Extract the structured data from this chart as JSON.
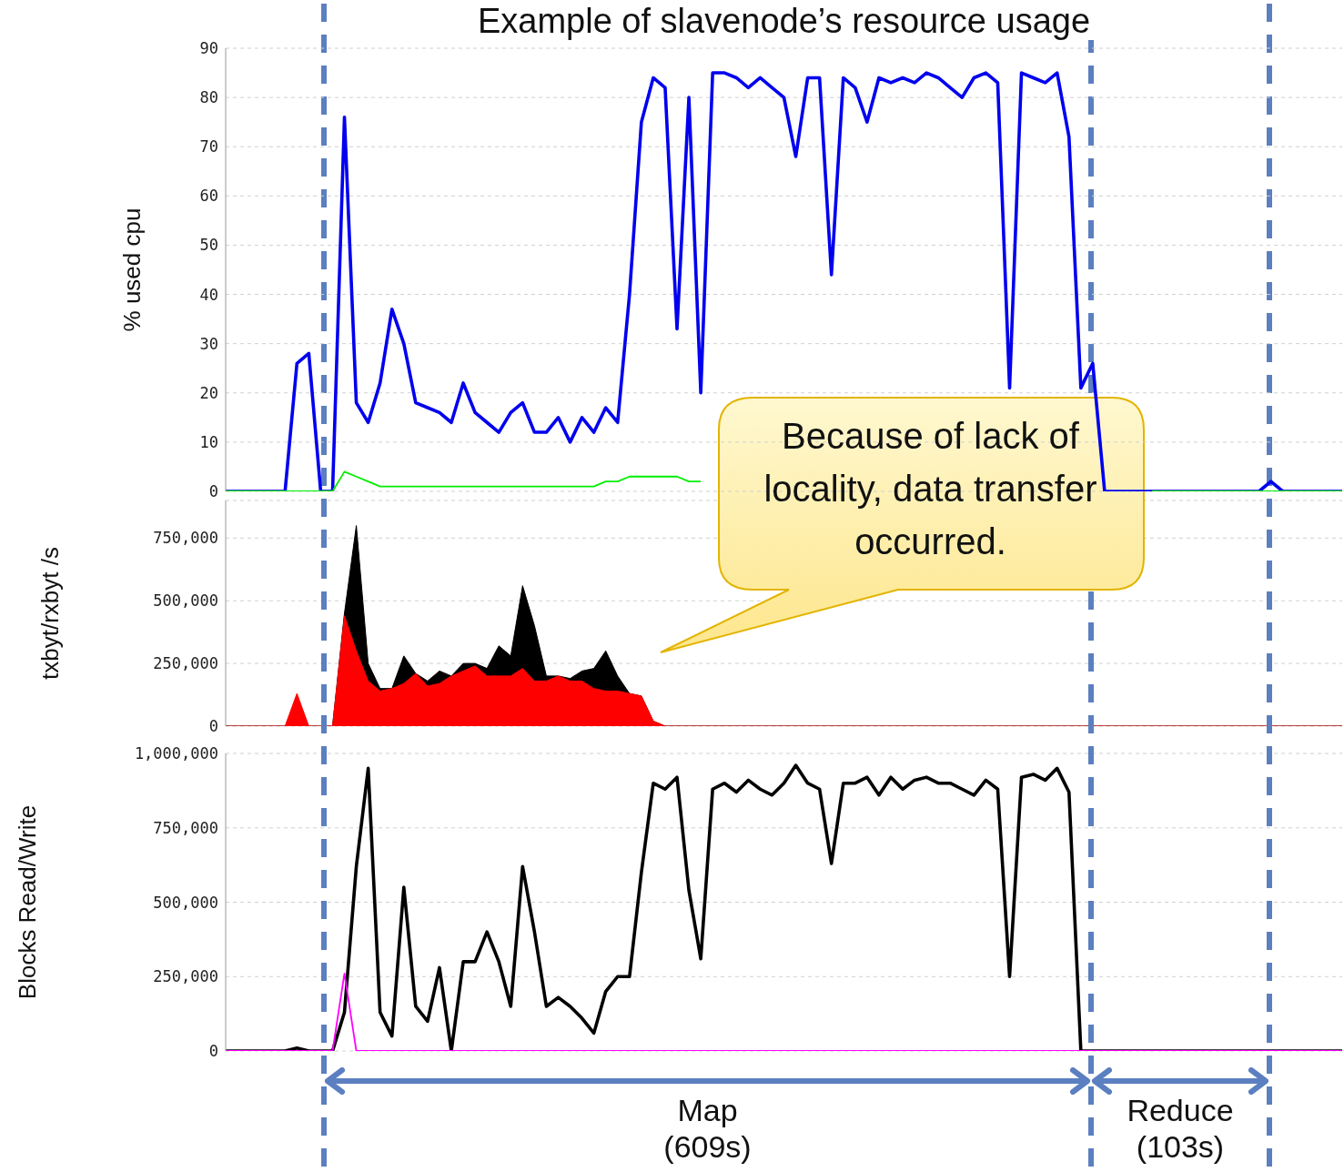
{
  "chart_data": [
    {
      "type": "line",
      "title": "Example of slavenode’s resource usage",
      "ylabel": "% used cpu",
      "categories": [
        null,
        null,
        null,
        null,
        null,
        null,
        null,
        null,
        null,
        null,
        null,
        null,
        null,
        null,
        null,
        null,
        null,
        null,
        null,
        null,
        null,
        null,
        null,
        null,
        null,
        null,
        null,
        null,
        null,
        null,
        null,
        null,
        null,
        null,
        null,
        null,
        null,
        null,
        null,
        null,
        null,
        null,
        null,
        null,
        null,
        null,
        null,
        null,
        null,
        null,
        null,
        null,
        null,
        null,
        null,
        null,
        null,
        null,
        null,
        null,
        null,
        null,
        null,
        null,
        null,
        null,
        null,
        null,
        null,
        null,
        null,
        null,
        null,
        null,
        null,
        null,
        null,
        null,
        null,
        null,
        null,
        null,
        null,
        null,
        null,
        null,
        null,
        null,
        null,
        null,
        null,
        null,
        null,
        null,
        null
      ],
      "ylim": [
        0,
        90
      ],
      "yticks": [
        0,
        10,
        20,
        30,
        40,
        50,
        60,
        70,
        80,
        90
      ],
      "tick_labels": "y",
      "grid": "y",
      "series": [
        {
          "color": "#0000ee",
          "values": [
            0,
            0,
            0,
            0,
            0,
            0,
            26,
            28,
            0,
            0,
            76,
            18,
            14,
            22,
            37,
            30,
            18,
            17,
            16,
            14,
            22,
            16,
            14,
            12,
            16,
            18,
            12,
            12,
            15,
            10,
            15,
            12,
            17,
            14,
            40,
            75,
            84,
            82,
            33,
            80,
            20,
            85,
            85,
            84,
            82,
            84,
            82,
            80,
            68,
            84,
            84,
            44,
            84,
            82,
            75,
            84,
            83,
            84,
            83,
            85,
            84,
            82,
            80,
            84,
            85,
            83,
            21,
            85,
            84,
            83,
            85,
            72,
            21,
            26,
            0,
            0,
            0,
            0,
            0,
            0,
            0,
            0,
            0,
            0,
            0,
            0,
            0,
            0,
            2,
            0,
            0,
            0,
            0,
            0,
            0
          ]
        },
        {
          "color": "#00ee00",
          "values": [
            0,
            0,
            0,
            0,
            0,
            0,
            0,
            0,
            0,
            0,
            4,
            3,
            2,
            1,
            1,
            1,
            1,
            1,
            1,
            1,
            1,
            1,
            1,
            1,
            1,
            1,
            1,
            1,
            1,
            1,
            1,
            1,
            2,
            2,
            3,
            3,
            3,
            3,
            3,
            2,
            2,
            null,
            null,
            null,
            null,
            null,
            null,
            null,
            null,
            null,
            null,
            null,
            null,
            null,
            null,
            null,
            null,
            null,
            null,
            null,
            null,
            null,
            null,
            null,
            null,
            null,
            null,
            null,
            null,
            null,
            null,
            null,
            null,
            null,
            null,
            null,
            null,
            null,
            0,
            0,
            0,
            0,
            0,
            0,
            0,
            0,
            0,
            0,
            0,
            0,
            0,
            0,
            0,
            0,
            0
          ]
        }
      ]
    },
    {
      "type": "area",
      "ylabel": "txbyt/rxbyt /s",
      "categories": [
        null,
        null,
        null,
        null,
        null,
        null,
        null,
        null,
        null,
        null,
        null,
        null,
        null,
        null,
        null,
        null,
        null,
        null,
        null,
        null,
        null,
        null,
        null,
        null,
        null,
        null,
        null,
        null,
        null,
        null,
        null,
        null,
        null,
        null,
        null,
        null,
        null,
        null,
        null,
        null,
        null,
        null,
        null,
        null,
        null,
        null,
        null,
        null,
        null,
        null,
        null,
        null,
        null,
        null,
        null,
        null,
        null,
        null,
        null,
        null,
        null,
        null,
        null,
        null,
        null,
        null,
        null,
        null,
        null,
        null,
        null,
        null,
        null,
        null,
        null,
        null,
        null,
        null,
        null,
        null,
        null,
        null,
        null,
        null,
        null,
        null,
        null,
        null,
        null,
        null,
        null,
        null,
        null,
        null,
        null
      ],
      "ylim": [
        0,
        900000
      ],
      "yticks": [
        0,
        {
          "value": 250000,
          "label": "250,000"
        },
        {
          "value": 500000,
          "label": "500,000"
        },
        {
          "value": 750000,
          "label": "750,000"
        }
      ],
      "tick_labels": "y",
      "grid": "y",
      "annotations": [
        "Because of lack of locality, data transfer occurred."
      ],
      "series": [
        {
          "color": "#000000",
          "values": [
            0,
            0,
            0,
            0,
            0,
            0,
            0,
            0,
            0,
            0,
            450000,
            800000,
            250000,
            150000,
            150000,
            280000,
            210000,
            180000,
            220000,
            200000,
            250000,
            250000,
            230000,
            320000,
            280000,
            560000,
            400000,
            200000,
            200000,
            190000,
            220000,
            230000,
            300000,
            200000,
            130000,
            120000,
            20000,
            0,
            0,
            0,
            0,
            0,
            0,
            0,
            0,
            0,
            0,
            0,
            0,
            0,
            0,
            0,
            0,
            0,
            0,
            0,
            0,
            0,
            0,
            0,
            0,
            0,
            0,
            0,
            0,
            0,
            0,
            0,
            0,
            0,
            0,
            0,
            0,
            0,
            0,
            0,
            0,
            0,
            0,
            0,
            0,
            0,
            0,
            0,
            0,
            0,
            0,
            0,
            0,
            0,
            0,
            0,
            0,
            0,
            0
          ]
        },
        {
          "color": "#ff0000",
          "values": [
            0,
            0,
            0,
            0,
            0,
            0,
            130000,
            0,
            0,
            0,
            440000,
            300000,
            180000,
            140000,
            150000,
            170000,
            210000,
            160000,
            170000,
            200000,
            220000,
            240000,
            200000,
            200000,
            200000,
            230000,
            180000,
            180000,
            200000,
            180000,
            180000,
            150000,
            140000,
            140000,
            130000,
            120000,
            20000,
            0,
            0,
            0,
            0,
            0,
            0,
            0,
            0,
            0,
            0,
            0,
            0,
            0,
            0,
            0,
            0,
            0,
            0,
            0,
            0,
            0,
            0,
            0,
            0,
            0,
            0,
            0,
            0,
            0,
            0,
            0,
            0,
            0,
            0,
            0,
            0,
            0,
            0,
            0,
            0,
            0,
            0,
            0,
            0,
            0,
            0,
            0,
            0,
            0,
            0,
            0,
            0,
            0,
            0,
            0,
            0,
            0,
            0
          ]
        }
      ]
    },
    {
      "type": "line",
      "ylabel": "Blocks Read/Write",
      "categories": [
        null,
        null,
        null,
        null,
        null,
        null,
        null,
        null,
        null,
        null,
        null,
        null,
        null,
        null,
        null,
        null,
        null,
        null,
        null,
        null,
        null,
        null,
        null,
        null,
        null,
        null,
        null,
        null,
        null,
        null,
        null,
        null,
        null,
        null,
        null,
        null,
        null,
        null,
        null,
        null,
        null,
        null,
        null,
        null,
        null,
        null,
        null,
        null,
        null,
        null,
        null,
        null,
        null,
        null,
        null,
        null,
        null,
        null,
        null,
        null,
        null,
        null,
        null,
        null,
        null,
        null,
        null,
        null,
        null,
        null,
        null,
        null,
        null,
        null,
        null,
        null,
        null,
        null,
        null,
        null,
        null,
        null,
        null,
        null,
        null,
        null,
        null,
        null,
        null,
        null,
        null,
        null,
        null,
        null,
        null
      ],
      "ylim": [
        0,
        1000000
      ],
      "yticks": [
        0,
        {
          "value": 250000,
          "label": "250,000"
        },
        {
          "value": 500000,
          "label": "500,000"
        },
        {
          "value": 750000,
          "label": "750,000"
        },
        {
          "value": 1000000,
          "label": "1,000,000"
        }
      ],
      "tick_labels": "y",
      "grid": "y",
      "annotations": [
        "Map (609s)",
        "Reduce (103s)"
      ],
      "series": [
        {
          "color": "#000000",
          "values": [
            0,
            0,
            0,
            0,
            0,
            0,
            10000,
            0,
            0,
            0,
            130000,
            620000,
            950000,
            130000,
            50000,
            550000,
            150000,
            100000,
            280000,
            0,
            300000,
            300000,
            400000,
            300000,
            150000,
            620000,
            400000,
            150000,
            180000,
            150000,
            110000,
            60000,
            200000,
            250000,
            250000,
            600000,
            900000,
            880000,
            920000,
            540000,
            310000,
            880000,
            900000,
            870000,
            910000,
            880000,
            860000,
            900000,
            960000,
            900000,
            880000,
            630000,
            900000,
            900000,
            920000,
            860000,
            920000,
            880000,
            910000,
            920000,
            900000,
            900000,
            880000,
            860000,
            910000,
            880000,
            250000,
            920000,
            930000,
            910000,
            950000,
            870000,
            0,
            0,
            0,
            0,
            0,
            0,
            0,
            0,
            0,
            0,
            0,
            0,
            0,
            0,
            0,
            0,
            0,
            0,
            0,
            0,
            0,
            0,
            0
          ]
        },
        {
          "color": "#ff00ff",
          "values": [
            0,
            0,
            0,
            0,
            0,
            0,
            0,
            0,
            0,
            0,
            260000,
            0,
            0,
            0,
            0,
            0,
            0,
            0,
            0,
            0,
            0,
            0,
            0,
            0,
            0,
            0,
            0,
            0,
            0,
            0,
            0,
            0,
            0,
            0,
            0,
            0,
            0,
            0,
            0,
            0,
            0,
            0,
            0,
            0,
            0,
            0,
            0,
            0,
            0,
            0,
            0,
            0,
            0,
            0,
            0,
            0,
            0,
            0,
            0,
            0,
            0,
            0,
            0,
            0,
            0,
            0,
            0,
            0,
            0,
            0,
            0,
            0,
            0,
            0,
            0,
            0,
            0,
            0,
            0,
            0,
            0,
            0,
            0,
            0,
            0,
            0,
            0,
            0,
            0,
            0,
            0,
            0,
            0,
            0,
            0
          ]
        }
      ]
    }
  ]
}
